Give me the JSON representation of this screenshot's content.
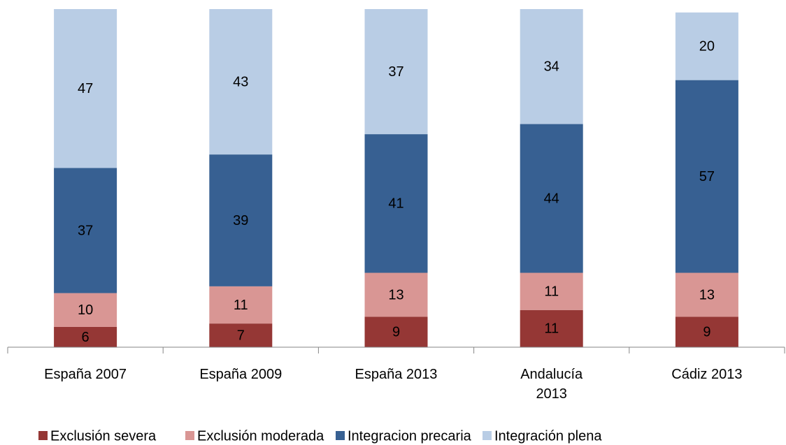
{
  "chart_data": {
    "type": "stacked_bar",
    "categories": [
      "España 2007",
      "España 2009",
      "España 2013",
      "Andalucía 2013",
      "Cádiz 2013"
    ],
    "series": [
      {
        "name": "Exclusión severa",
        "color": "#953735",
        "values": [
          6,
          7,
          9,
          11,
          9
        ]
      },
      {
        "name": "Exclusión moderada",
        "color": "#d99694",
        "values": [
          10,
          11,
          13,
          11,
          13
        ]
      },
      {
        "name": "Integracion precaria",
        "color": "#376092",
        "values": [
          37,
          39,
          41,
          44,
          57
        ]
      },
      {
        "name": "Integración plena",
        "color": "#b9cde5",
        "values": [
          47,
          43,
          37,
          34,
          20
        ]
      }
    ],
    "ylim": [
      0,
      100
    ]
  }
}
